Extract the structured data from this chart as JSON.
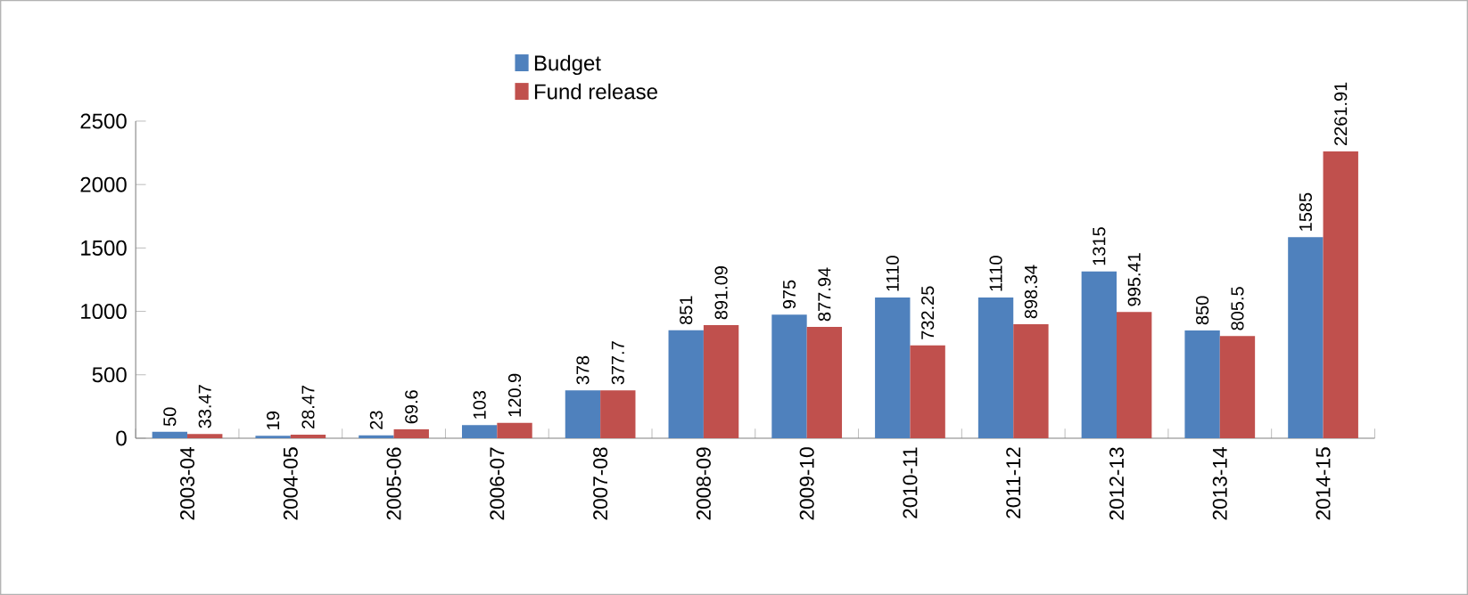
{
  "chart_data": {
    "type": "bar",
    "categories": [
      "2003-04",
      "2004-05",
      "2005-06",
      "2006-07",
      "2007-08",
      "2008-09",
      "2009-10",
      "2010-11",
      "2011-12",
      "2012-13",
      "2013-14",
      "2014-15"
    ],
    "series": [
      {
        "name": "Budget",
        "color": "#4f81bd",
        "values": [
          50,
          19,
          23,
          103,
          378,
          851,
          975,
          1110,
          1110,
          1315,
          850,
          1585
        ]
      },
      {
        "name": "Fund release",
        "color": "#c0504d",
        "values": [
          33.47,
          28.47,
          69.6,
          120.9,
          377.7,
          891.09,
          877.94,
          732.25,
          898.34,
          995.41,
          805.5,
          2261.91
        ]
      }
    ],
    "ylim": [
      0,
      2500
    ],
    "yticks": [
      0,
      500,
      1000,
      1500,
      2000,
      2500
    ],
    "data_labels": true,
    "legend": "top",
    "grid": false
  }
}
